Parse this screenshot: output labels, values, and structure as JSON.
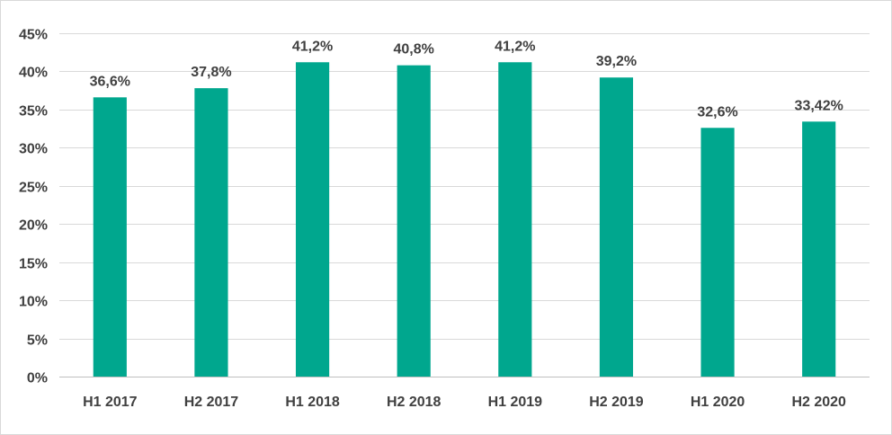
{
  "chart_data": {
    "type": "bar",
    "title": "",
    "xlabel": "",
    "ylabel": "",
    "categories": [
      "H1 2017",
      "H2 2017",
      "H1 2018",
      "H2 2018",
      "H1 2019",
      "H2 2019",
      "H1 2020",
      "H2 2020"
    ],
    "values": [
      36.6,
      37.8,
      41.2,
      40.8,
      41.2,
      39.2,
      32.6,
      33.42
    ],
    "data_labels": [
      "36,6%",
      "37,8%",
      "41,2%",
      "40,8%",
      "41,2%",
      "39,2%",
      "32,6%",
      "33,42%"
    ],
    "ylim": [
      0,
      45
    ],
    "y_ticks": [
      0,
      5,
      10,
      15,
      20,
      25,
      30,
      35,
      40,
      45
    ],
    "y_tick_labels": [
      "0%",
      "5%",
      "10%",
      "15%",
      "20%",
      "25%",
      "30%",
      "35%",
      "40%",
      "45%"
    ],
    "grid": true,
    "legend": "none",
    "bar_color": "#00a78e",
    "gridline_color": "#d9d9d9",
    "text_color": "#404040"
  }
}
